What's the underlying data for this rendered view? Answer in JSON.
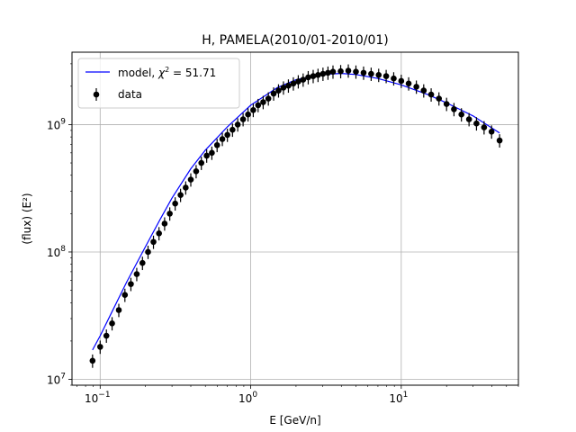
{
  "chart_data": {
    "type": "scatter",
    "title": "H, PAMELA(2010/01-2010/01)",
    "xlabel": "E [GeV/n]",
    "ylabel": "(flux)  (E²)",
    "xscale": "log",
    "yscale": "log",
    "xlim": [
      0.065,
      60
    ],
    "ylim": [
      9000000.0,
      3700000000.0
    ],
    "grid": true,
    "legend_position": "top-left",
    "x_ticks": [
      {
        "value": 0.1,
        "base": "10",
        "exp": "−1"
      },
      {
        "value": 1,
        "base": "10",
        "exp": "0"
      },
      {
        "value": 10,
        "base": "10",
        "exp": "1"
      }
    ],
    "y_ticks": [
      {
        "value": 10000000.0,
        "base": "10",
        "exp": "7"
      },
      {
        "value": 100000000.0,
        "base": "10",
        "exp": "8"
      },
      {
        "value": 1000000000.0,
        "base": "10",
        "exp": "9"
      }
    ],
    "legend": {
      "model_label": "model, ",
      "model_chi": "χ",
      "model_chi_exp": "2",
      "model_value": " = 51.71",
      "data_label": "data"
    },
    "colors": {
      "model": "#0000ff",
      "data": "#000000",
      "grid": "#b0b0b0"
    },
    "series": [
      {
        "name": "data",
        "kind": "errorbar",
        "x": [
          0.089,
          0.1,
          0.11,
          0.12,
          0.133,
          0.146,
          0.16,
          0.175,
          0.191,
          0.208,
          0.226,
          0.246,
          0.268,
          0.29,
          0.315,
          0.342,
          0.37,
          0.4,
          0.434,
          0.47,
          0.51,
          0.552,
          0.598,
          0.648,
          0.7,
          0.757,
          0.82,
          0.89,
          0.96,
          1.04,
          1.12,
          1.21,
          1.31,
          1.42,
          1.53,
          1.65,
          1.78,
          1.92,
          2.07,
          2.23,
          2.41,
          2.6,
          2.8,
          3.02,
          3.26,
          3.52,
          3.96,
          4.45,
          5.0,
          5.62,
          6.31,
          7.08,
          7.94,
          8.91,
          10.0,
          11.2,
          12.6,
          14.1,
          15.8,
          17.8,
          20.0,
          22.4,
          25.1,
          28.2,
          31.6,
          35.5,
          39.8,
          45.0
        ],
        "y": [
          14000000.0,
          18000000.0,
          22000000.0,
          27500000.0,
          35000000.0,
          46000000.0,
          56000000.0,
          67000000.0,
          82000000.0,
          100000000.0,
          120000000.0,
          140000000.0,
          167000000.0,
          200000000.0,
          240000000.0,
          280000000.0,
          320000000.0,
          370000000.0,
          430000000.0,
          500000000.0,
          570000000.0,
          600000000.0,
          690000000.0,
          770000000.0,
          830000000.0,
          910000000.0,
          1000000000.0,
          1100000000.0,
          1200000000.0,
          1300000000.0,
          1420000000.0,
          1500000000.0,
          1600000000.0,
          1750000000.0,
          1850000000.0,
          1950000000.0,
          2020000000.0,
          2100000000.0,
          2180000000.0,
          2250000000.0,
          2350000000.0,
          2400000000.0,
          2450000000.0,
          2500000000.0,
          2550000000.0,
          2600000000.0,
          2620000000.0,
          2650000000.0,
          2600000000.0,
          2550000000.0,
          2500000000.0,
          2450000000.0,
          2400000000.0,
          2300000000.0,
          2200000000.0,
          2100000000.0,
          1980000000.0,
          1850000000.0,
          1720000000.0,
          1600000000.0,
          1450000000.0,
          1320000000.0,
          1200000000.0,
          1100000000.0,
          1020000000.0,
          950000000.0,
          880000000.0,
          750000000.0
        ],
        "yerr_frac": 0.12
      },
      {
        "name": "model",
        "kind": "line",
        "x": [
          0.089,
          0.1,
          0.12,
          0.15,
          0.2,
          0.25,
          0.3,
          0.4,
          0.5,
          0.7,
          1.0,
          1.5,
          2.0,
          3.0,
          4.0,
          5.0,
          7.0,
          10.0,
          15.0,
          20.0,
          30.0,
          45.0
        ],
        "y": [
          17000000.0,
          22000000.0,
          34000000.0,
          58000000.0,
          110000000.0,
          180000000.0,
          265000000.0,
          450000000.0,
          630000000.0,
          960000000.0,
          1420000000.0,
          1950000000.0,
          2250000000.0,
          2480000000.0,
          2520000000.0,
          2470000000.0,
          2300000000.0,
          2050000000.0,
          1720000000.0,
          1480000000.0,
          1170000000.0,
          860000000.0
        ]
      }
    ]
  }
}
